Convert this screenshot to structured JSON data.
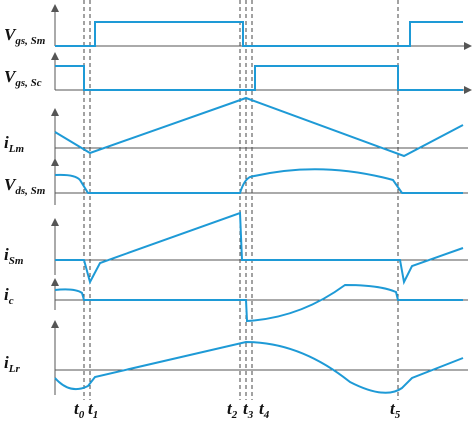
{
  "signals": [
    {
      "label": {
        "main": "V",
        "sub": "gs, Sm"
      }
    },
    {
      "label": {
        "main": "V",
        "sub": "gs, Sc"
      }
    },
    {
      "label": {
        "main": "i",
        "sub": "Lm"
      }
    },
    {
      "label": {
        "main": "V",
        "sub": "ds, Sm"
      }
    },
    {
      "label": {
        "main": "i",
        "sub": "Sm"
      }
    },
    {
      "label": {
        "main": "i",
        "sub": "c"
      }
    },
    {
      "label": {
        "main": "i",
        "sub": "Lr"
      }
    }
  ],
  "time_marks": [
    {
      "main": "t",
      "sub": "0"
    },
    {
      "main": "t",
      "sub": "1"
    },
    {
      "main": "t",
      "sub": "2"
    },
    {
      "main": "t",
      "sub": "3"
    },
    {
      "main": "t",
      "sub": "4"
    },
    {
      "main": "t",
      "sub": "5"
    }
  ]
}
